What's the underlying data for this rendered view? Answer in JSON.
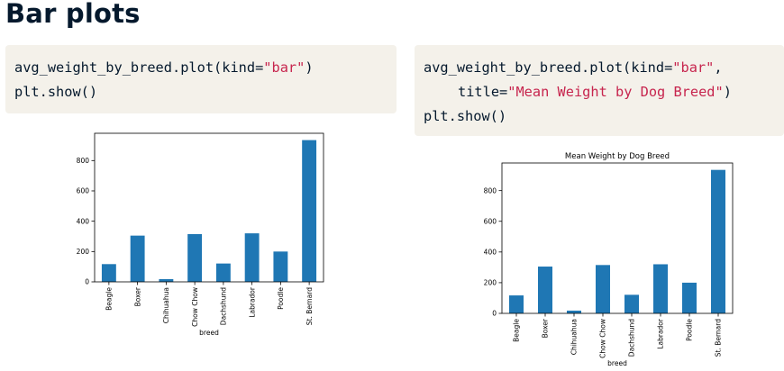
{
  "slide": {
    "title": "Bar plots"
  },
  "code_left": {
    "line1_prefix": "avg_weight_by_breed.plot(kind=",
    "line1_string": "\"bar\"",
    "line1_suffix": ")",
    "line2": "plt.show()"
  },
  "code_right": {
    "line1_prefix": "avg_weight_by_breed.plot(kind=",
    "line1_string": "\"bar\"",
    "line1_suffix": ",",
    "line2_prefix": "title=",
    "line2_string": "\"Mean Weight by Dog Breed\"",
    "line2_suffix": ")",
    "line3": "plt.show()"
  },
  "chart_data": [
    {
      "type": "bar",
      "title": "",
      "xlabel": "breed",
      "ylabel": "",
      "categories": [
        "Beagle",
        "Boxer",
        "Chihuahua",
        "Chow Chow",
        "Dachshund",
        "Labrador",
        "Poodle",
        "St. Bernard"
      ],
      "values": [
        117,
        305,
        18,
        315,
        121,
        320,
        200,
        935
      ],
      "ylim": [
        0,
        980
      ],
      "yticks": [
        0,
        200,
        400,
        600,
        800
      ],
      "bar_color": "#1f77b4"
    },
    {
      "type": "bar",
      "title": "Mean Weight by Dog Breed",
      "xlabel": "breed",
      "ylabel": "",
      "categories": [
        "Beagle",
        "Boxer",
        "Chihuahua",
        "Chow Chow",
        "Dachshund",
        "Labrador",
        "Poodle",
        "St. Bernard"
      ],
      "values": [
        117,
        305,
        18,
        315,
        121,
        320,
        200,
        935
      ],
      "ylim": [
        0,
        980
      ],
      "yticks": [
        0,
        200,
        400,
        600,
        800
      ],
      "bar_color": "#1f77b4"
    }
  ]
}
